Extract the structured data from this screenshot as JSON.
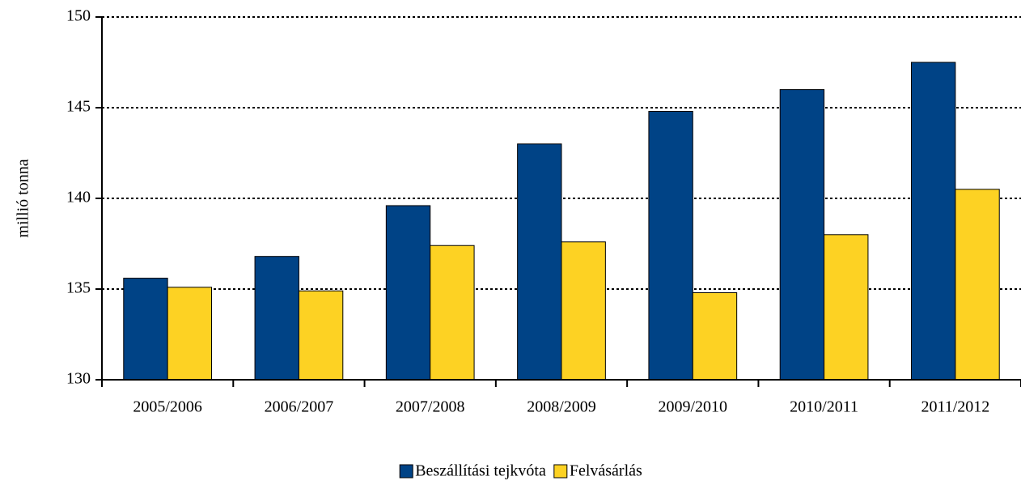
{
  "chart_data": {
    "type": "bar",
    "y_label": "millió tonna",
    "categories": [
      "2005/2006",
      "2006/2007",
      "2007/2008",
      "2008/2009",
      "2009/2010",
      "2010/2011",
      "2011/2012"
    ],
    "series": [
      {
        "name": "Beszállítási tejkvóta",
        "color": "#004386",
        "values": [
          135.6,
          136.8,
          139.6,
          143.0,
          144.8,
          146.0,
          147.5
        ]
      },
      {
        "name": "Felvásárlás",
        "color": "#fdd223",
        "values": [
          135.1,
          134.9,
          137.4,
          137.6,
          134.8,
          138.0,
          140.5
        ]
      }
    ],
    "ylim": [
      130,
      150
    ],
    "yticks": [
      130,
      135,
      140,
      145,
      150
    ],
    "grid": true,
    "legend": "bottom"
  }
}
